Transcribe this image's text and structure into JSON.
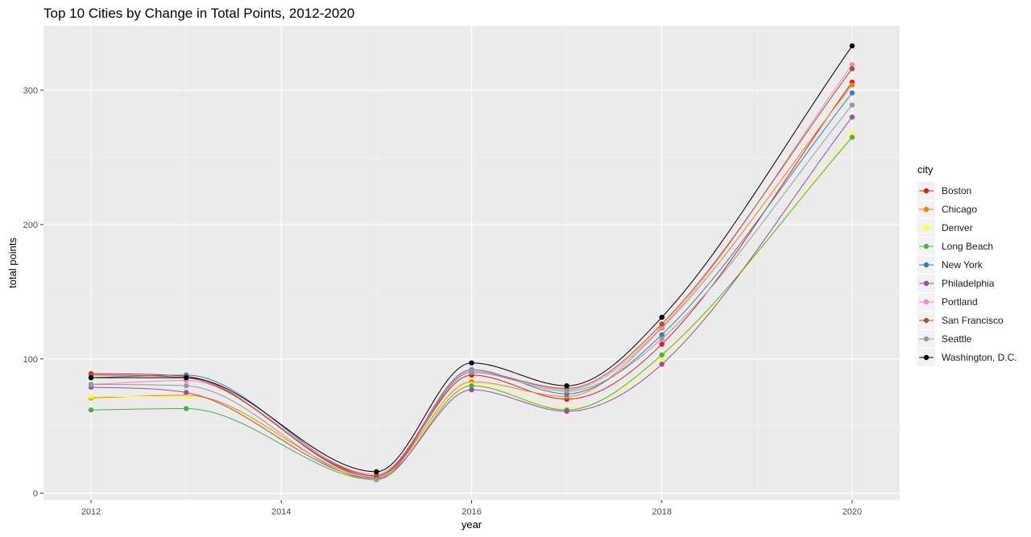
{
  "chart_data": {
    "type": "line",
    "title": "Top 10 Cities by Change in Total Points, 2012-2020",
    "xlabel": "year",
    "ylabel": "total points",
    "xlim": [
      2011.5,
      2020.5
    ],
    "ylim": [
      -5,
      348
    ],
    "x_ticks": [
      2012,
      2014,
      2016,
      2018,
      2020
    ],
    "x_tick_labels": [
      "2012",
      "2014",
      "2016",
      "2018",
      "2020"
    ],
    "y_ticks": [
      0,
      100,
      200,
      300
    ],
    "y_tick_labels": [
      "0",
      "100",
      "200",
      "300"
    ],
    "x_minor_ticks": [
      2013,
      2015,
      2017,
      2019
    ],
    "y_minor_ticks": [
      50,
      150,
      250
    ],
    "grid": true,
    "legend_title": "city",
    "legend_position": "right",
    "x": [
      2012,
      2013,
      2015,
      2016,
      2017,
      2018,
      2020
    ],
    "series": [
      {
        "name": "Boston",
        "color": "#E41A1C",
        "values": [
          89,
          87,
          12,
          88,
          70,
          111,
          306
        ]
      },
      {
        "name": "Chicago",
        "color": "#FF7F00",
        "values": [
          71,
          73,
          12,
          83,
          72,
          123,
          304
        ]
      },
      {
        "name": "Denver",
        "color": "#FFFF33",
        "values": [
          72,
          72,
          10,
          81,
          63,
          100,
          268
        ]
      },
      {
        "name": "Long Beach",
        "color": "#4DAF4A",
        "values": [
          62,
          63,
          10,
          80,
          62,
          103,
          265
        ]
      },
      {
        "name": "New York",
        "color": "#377EB8",
        "values": [
          86,
          88,
          13,
          92,
          74,
          118,
          298
        ]
      },
      {
        "name": "Philadelphia",
        "color": "#984EA3",
        "values": [
          79,
          75,
          11,
          77,
          61,
          96,
          280
        ]
      },
      {
        "name": "Portland",
        "color": "#F781BF",
        "values": [
          81,
          84,
          14,
          91,
          77,
          124,
          319
        ]
      },
      {
        "name": "San Francisco",
        "color": "#A65628",
        "values": [
          88,
          86,
          13,
          90,
          78,
          126,
          316
        ]
      },
      {
        "name": "Seattle",
        "color": "#999999",
        "values": [
          81,
          80,
          10,
          90,
          76,
          115,
          289
        ]
      },
      {
        "name": "Washington, D.C.",
        "color": "#000000",
        "values": [
          86,
          86,
          16,
          97,
          80,
          131,
          333
        ]
      }
    ]
  }
}
